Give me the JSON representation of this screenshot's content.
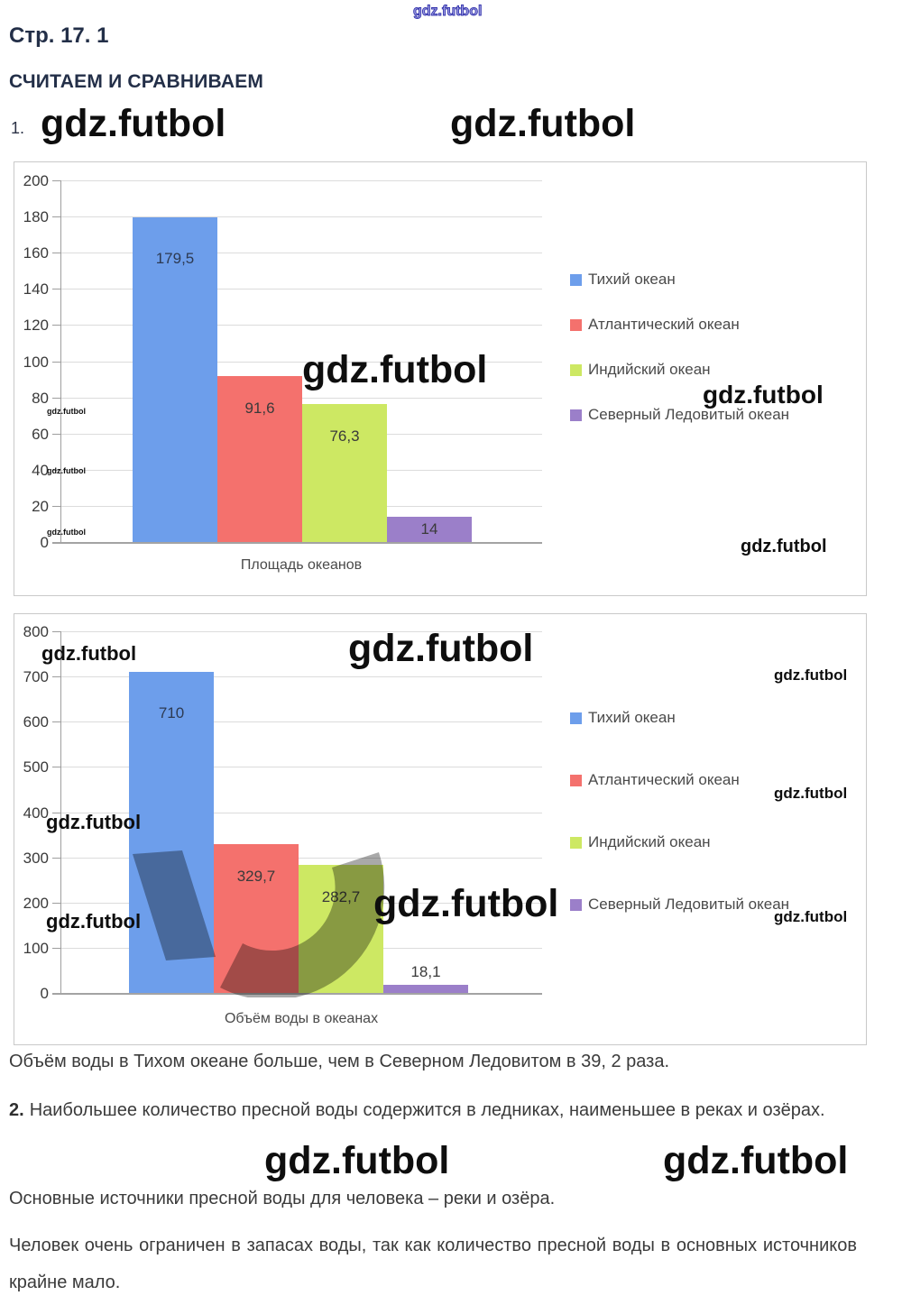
{
  "page": {
    "watermark_text": "gdz.futbol",
    "page_heading": "Стр. 17. 1",
    "section_heading": "СЧИТАЕМ И СРАВНИВАЕМ",
    "task1_number": "1.",
    "task2_number": "2."
  },
  "chart_data": [
    {
      "type": "bar",
      "title": "Площадь океанов",
      "xlabel": "Площадь океанов",
      "ylabel": "",
      "categories": [
        "Тихий океан",
        "Атлантический океан",
        "Индийский океан",
        "Северный Ледовитый океан"
      ],
      "values": [
        179.5,
        91.6,
        76.3,
        14
      ],
      "value_labels": [
        "179,5",
        "91,6",
        "76,3",
        "14"
      ],
      "colors": [
        "#6D9EEB",
        "#F4716D",
        "#CDE863",
        "#9B7FC9"
      ],
      "ylim": [
        0,
        200
      ],
      "ytick_step": 20,
      "grid": true,
      "legend_position": "right"
    },
    {
      "type": "bar",
      "title": "Объём воды в океанах",
      "xlabel": "Объём воды в океанах",
      "ylabel": "",
      "categories": [
        "Тихий океан",
        "Атлантический океан",
        "Индийский океан",
        "Северный Ледовитый океан"
      ],
      "values": [
        710,
        329.7,
        282.7,
        18.1
      ],
      "value_labels": [
        "710",
        "329,7",
        "282,7",
        "18,1"
      ],
      "colors": [
        "#6D9EEB",
        "#F4716D",
        "#CDE863",
        "#9B7FC9"
      ],
      "ylim": [
        0,
        800
      ],
      "ytick_step": 100,
      "grid": true,
      "legend_position": "right"
    }
  ],
  "paragraphs": {
    "p1": "Объём воды в Тихом океане больше, чем в Северном Ледовитом в 39, 2 раза.",
    "p2": "Наибольшее количество пресной воды содержится в ледниках, наименьшее в реках и озёрах.",
    "p3": "Основные источники пресной воды для человека – реки и озёра.",
    "p4": "Человек очень ограничен в запасах воды, так как количество пресной воды в основных источников крайне мало."
  },
  "colors": {
    "heading": "#232f48",
    "body_text": "#3b3b3b",
    "grid": "#dcdcdc",
    "axis": "#9e9e9e",
    "watermark_black": "#0e0e0e",
    "watermark_blue": "#3434ad",
    "series_blue": "#6D9EEB",
    "series_red": "#F4716D",
    "series_green": "#CDE863",
    "series_purple": "#9B7FC9"
  }
}
